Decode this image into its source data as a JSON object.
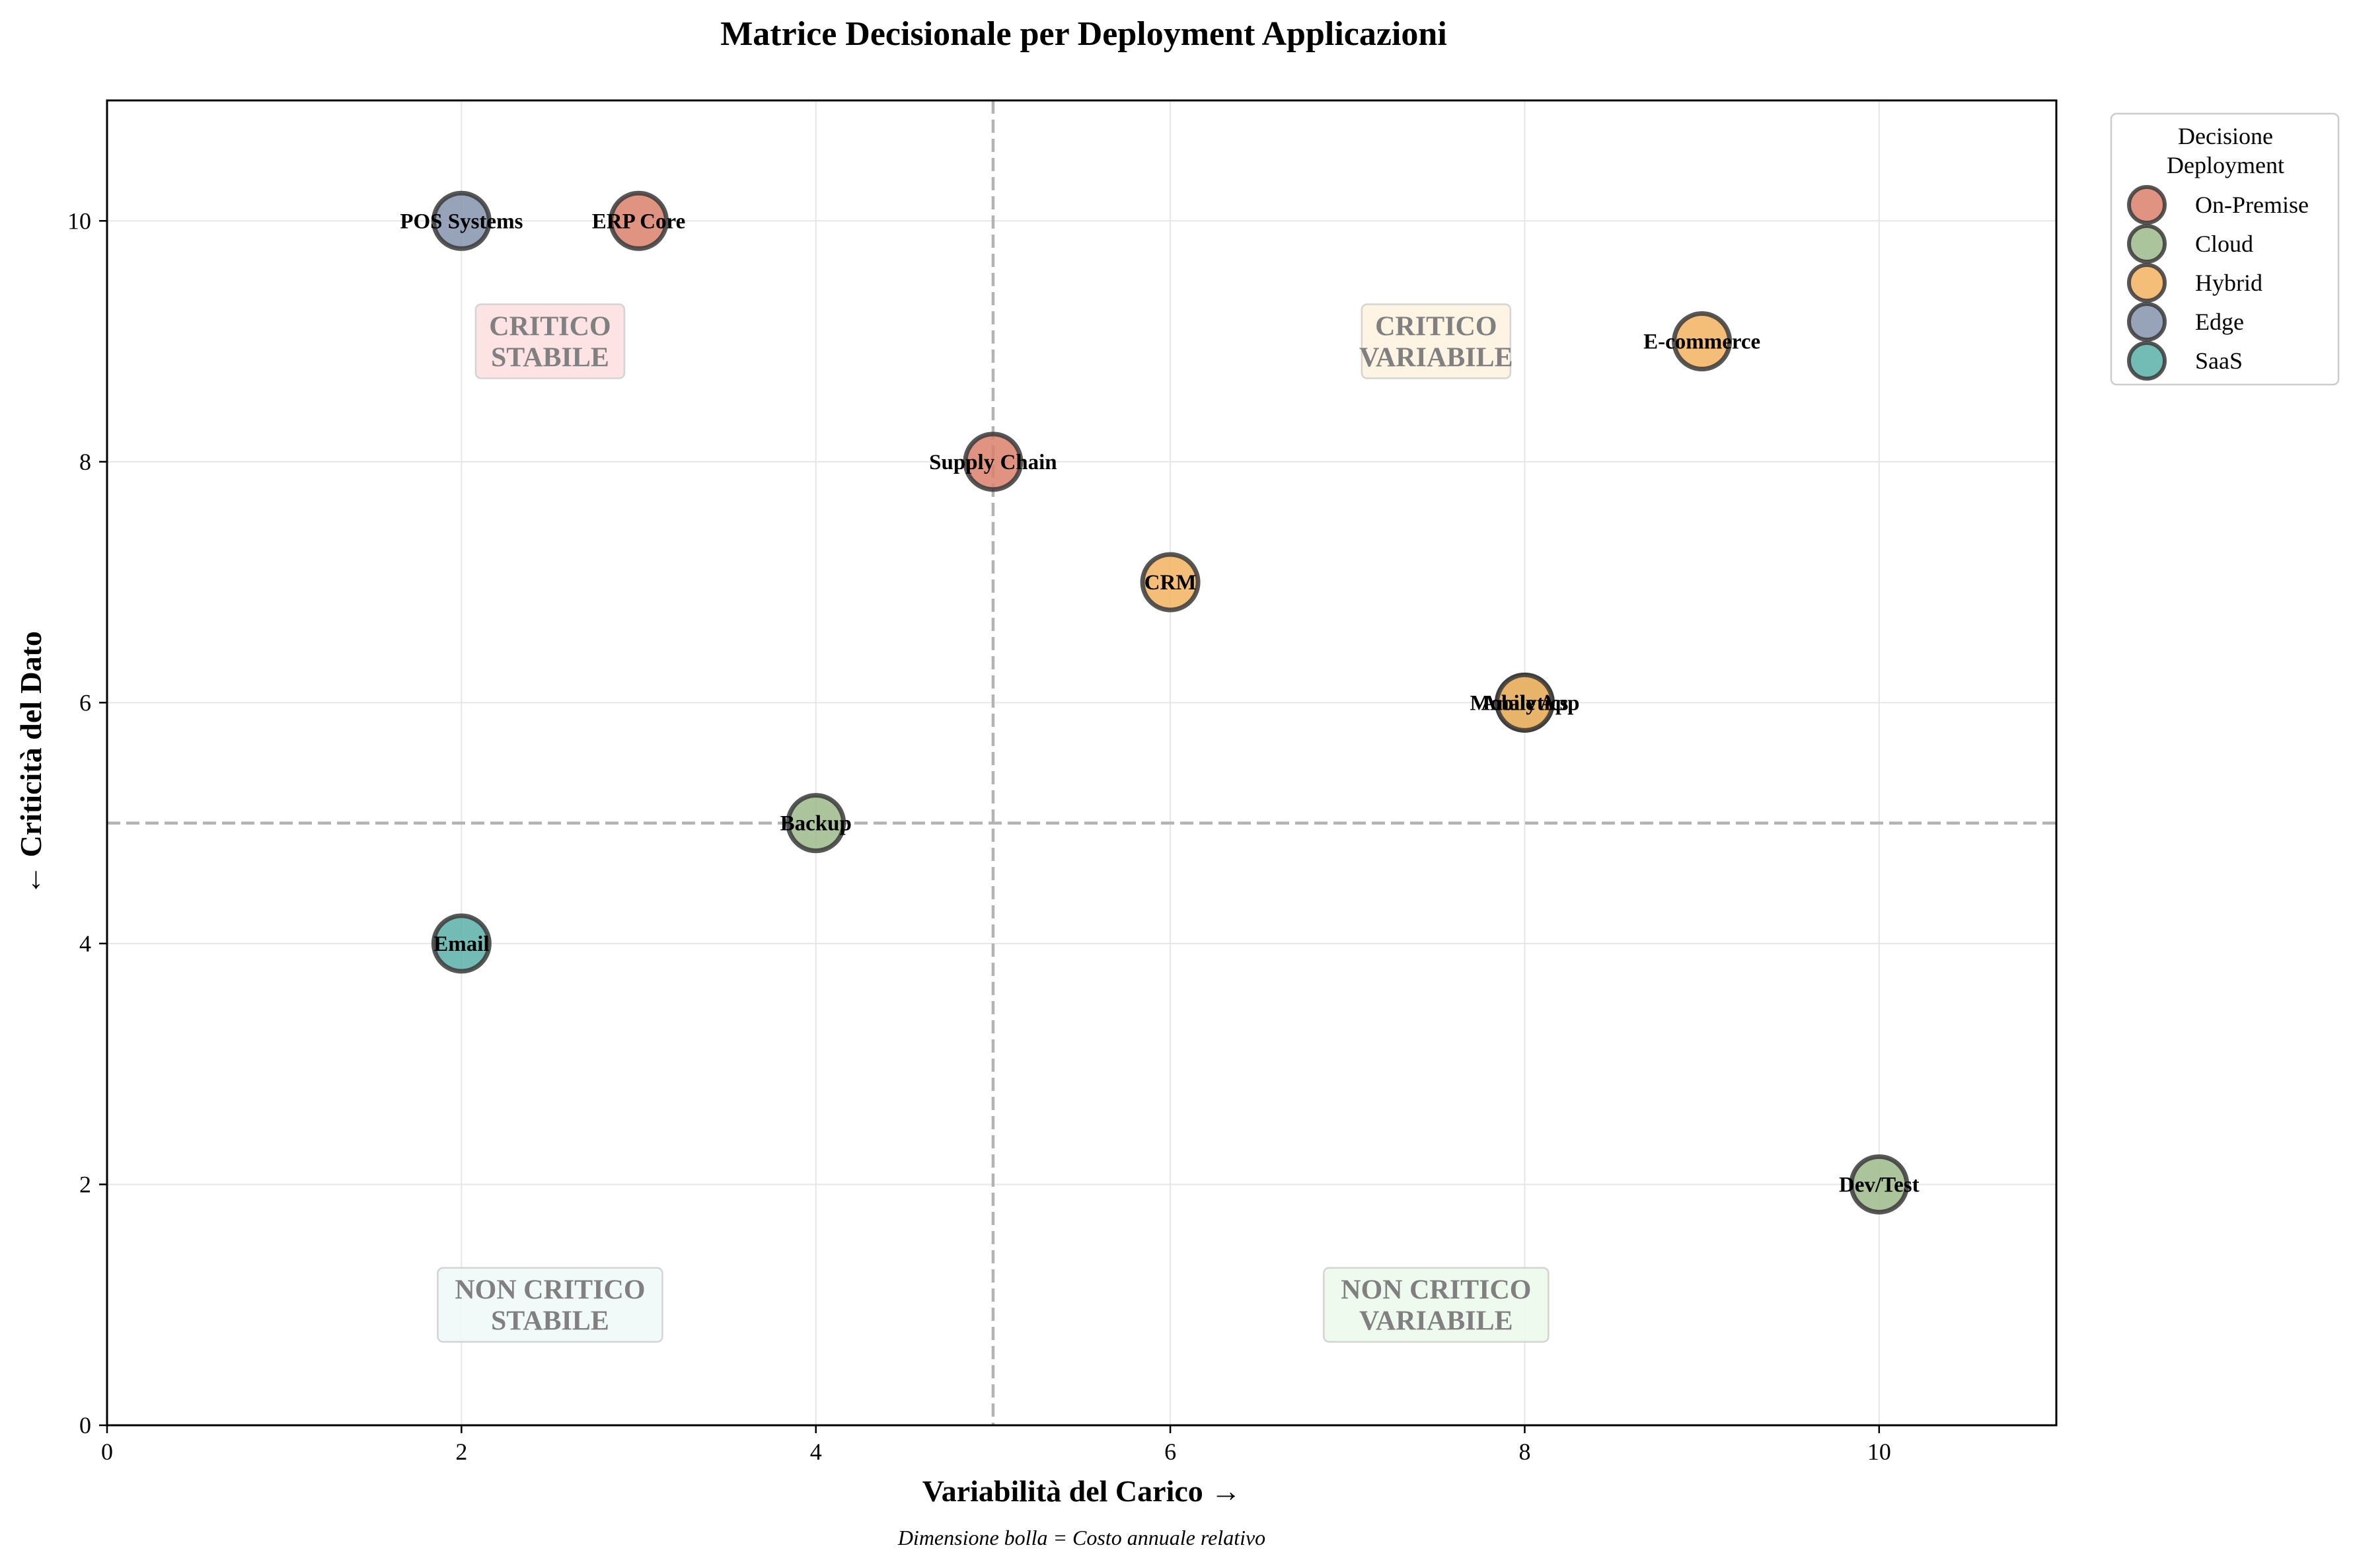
{
  "chart_data": {
    "type": "scatter",
    "title": "Matrice Decisionale per Deployment Applicazioni",
    "xlabel": "Variabilità del Carico →",
    "ylabel": "← Criticità del Dato",
    "note": "Dimensione bolla = Costo annuale relativo",
    "xlim": [
      0,
      11
    ],
    "ylim": [
      0,
      11
    ],
    "xticks": [
      0,
      2,
      4,
      6,
      8,
      10
    ],
    "yticks": [
      0,
      2,
      4,
      6,
      8,
      10
    ],
    "grid": true,
    "threshold_x": 5,
    "threshold_y": 5,
    "quadrants": [
      {
        "lines": [
          "CRITICO",
          "STABILE"
        ],
        "x": 2.5,
        "y": 9.0,
        "fill": "#fde0e0"
      },
      {
        "lines": [
          "CRITICO",
          "VARIABILE"
        ],
        "x": 7.5,
        "y": 9.0,
        "fill": "#fdf3e1"
      },
      {
        "lines": [
          "NON CRITICO",
          "STABILE"
        ],
        "x": 2.5,
        "y": 1.0,
        "fill": "#f1f9f9"
      },
      {
        "lines": [
          "NON CRITICO",
          "VARIABILE"
        ],
        "x": 7.5,
        "y": 1.0,
        "fill": "#eefaee"
      }
    ],
    "legend": {
      "title": [
        "Decisione",
        "Deployment"
      ],
      "placement": "outside upper right",
      "entries": [
        "On-Premise",
        "Cloud",
        "Hybrid",
        "Edge",
        "SaaS"
      ]
    },
    "categories": {
      "On-Premise": "#d9806a",
      "Cloud": "#9dba8a",
      "Hybrid": "#f2b260",
      "Edge": "#8493ab",
      "SaaS": "#5bb0a8"
    },
    "points": [
      {
        "name": "POS Systems",
        "x": 2,
        "y": 10,
        "category": "Edge"
      },
      {
        "name": "ERP Core",
        "x": 3,
        "y": 10,
        "category": "On-Premise"
      },
      {
        "name": "E-commerce",
        "x": 9,
        "y": 9,
        "category": "Hybrid"
      },
      {
        "name": "Supply Chain",
        "x": 5,
        "y": 8,
        "category": "On-Premise"
      },
      {
        "name": "CRM",
        "x": 6,
        "y": 7,
        "category": "Hybrid"
      },
      {
        "name": "Mobile App",
        "x": 8,
        "y": 6,
        "category": "Cloud"
      },
      {
        "name": "Analytics",
        "x": 8,
        "y": 6,
        "category": "Hybrid"
      },
      {
        "name": "Backup",
        "x": 4,
        "y": 5,
        "category": "Cloud"
      },
      {
        "name": "Email",
        "x": 2,
        "y": 4,
        "category": "SaaS"
      },
      {
        "name": "Dev/Test",
        "x": 10,
        "y": 2,
        "category": "Cloud"
      }
    ]
  }
}
